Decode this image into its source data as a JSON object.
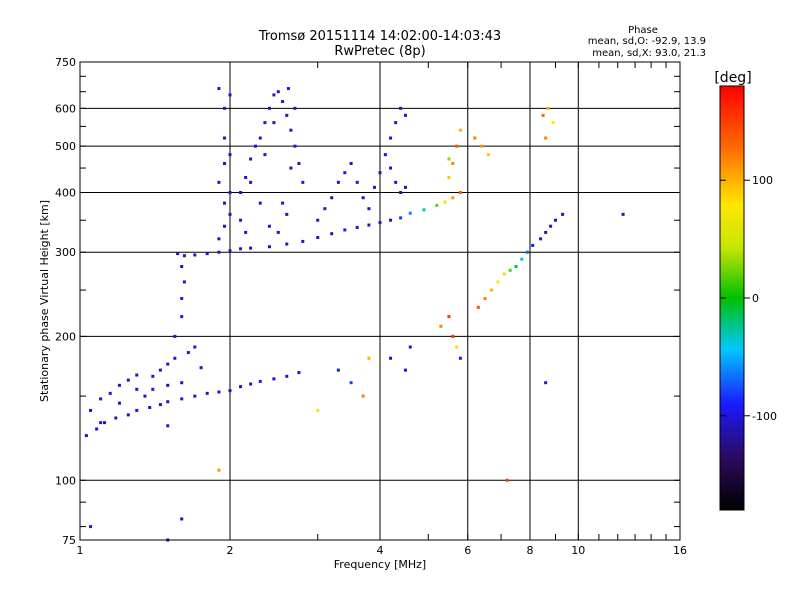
{
  "chart_data": {
    "type": "scatter",
    "title": "Tromsø 20151114 14:02:00-14:03:43",
    "subtitle": "RwPretec (8p)",
    "xlabel": "Frequency [MHz]",
    "ylabel": "Stationary phase Virtual Height [km]",
    "x_scale": "log",
    "y_scale": "log",
    "xlim": [
      1,
      16
    ],
    "ylim": [
      75,
      750
    ],
    "x_ticks": [
      1,
      2,
      4,
      6,
      8,
      10,
      16
    ],
    "y_ticks": [
      75,
      100,
      200,
      300,
      400,
      500,
      600,
      750
    ],
    "grid": true,
    "phase_box": {
      "title": "Phase",
      "line_o": "mean, sd,O: -92.9, 13.9",
      "line_x": "mean, sd,X:  93.0, 21.3"
    },
    "colorbar": {
      "label": "[deg]",
      "range": [
        -180,
        180
      ],
      "ticks": [
        100,
        0,
        -100
      ]
    },
    "series": [
      {
        "points": [
          [
            1.03,
            124,
            -110
          ],
          [
            1.08,
            128,
            -105
          ],
          [
            1.12,
            132,
            -112
          ],
          [
            1.18,
            135,
            -108
          ],
          [
            1.25,
            137,
            -115
          ],
          [
            1.3,
            140,
            -100
          ],
          [
            1.38,
            142,
            -110
          ],
          [
            1.45,
            144,
            -105
          ],
          [
            1.5,
            146,
            -112
          ],
          [
            1.6,
            148,
            -98
          ],
          [
            1.7,
            150,
            -108
          ],
          [
            1.8,
            152,
            -110
          ],
          [
            1.9,
            153,
            -104
          ],
          [
            2.0,
            154,
            -112
          ],
          [
            2.1,
            157,
            -110
          ],
          [
            2.2,
            159,
            -105
          ],
          [
            2.3,
            161,
            -95
          ],
          [
            2.45,
            163,
            -108
          ],
          [
            2.6,
            165,
            -100
          ],
          [
            2.75,
            168,
            -110
          ],
          [
            1.05,
            140,
            -110
          ],
          [
            1.1,
            148,
            -105
          ],
          [
            1.15,
            152,
            -100
          ],
          [
            1.2,
            158,
            -110
          ],
          [
            1.25,
            162,
            -108
          ],
          [
            1.3,
            166,
            -112
          ],
          [
            1.35,
            150,
            -106
          ],
          [
            1.4,
            155,
            -104
          ],
          [
            1.45,
            170,
            -110
          ],
          [
            1.5,
            175,
            -108
          ],
          [
            1.55,
            180,
            -102
          ],
          [
            1.6,
            160,
            -110
          ],
          [
            1.65,
            185,
            -106
          ],
          [
            1.7,
            190,
            -100
          ],
          [
            1.75,
            172,
            -108
          ],
          [
            1.1,
            132,
            -100
          ],
          [
            1.2,
            145,
            -112
          ],
          [
            1.3,
            155,
            -104
          ],
          [
            1.4,
            165,
            -100
          ],
          [
            1.5,
            158,
            -108
          ],
          [
            1.55,
            200,
            -110
          ],
          [
            1.6,
            220,
            -104
          ],
          [
            1.6,
            240,
            -100
          ],
          [
            1.62,
            260,
            -108
          ],
          [
            1.6,
            280,
            -112
          ],
          [
            1.62,
            295,
            -106
          ],
          [
            1.57,
            298,
            -110
          ],
          [
            1.7,
            296,
            -102
          ],
          [
            1.8,
            298,
            -108
          ],
          [
            1.9,
            300,
            -105
          ],
          [
            2.0,
            302,
            -110
          ],
          [
            2.1,
            305,
            -104
          ],
          [
            2.2,
            306,
            -108
          ],
          [
            2.4,
            308,
            -110
          ],
          [
            2.6,
            312,
            -100
          ],
          [
            2.8,
            316,
            -104
          ],
          [
            3.0,
            322,
            -108
          ],
          [
            3.2,
            328,
            -110
          ],
          [
            3.4,
            334,
            -100
          ],
          [
            3.6,
            338,
            -104
          ],
          [
            3.8,
            342,
            -108
          ],
          [
            4.0,
            346,
            -110
          ],
          [
            4.2,
            350,
            -100
          ],
          [
            4.4,
            354,
            -80
          ],
          [
            4.6,
            362,
            -60
          ],
          [
            4.9,
            368,
            -30
          ],
          [
            5.2,
            376,
            20
          ],
          [
            5.4,
            382,
            60
          ],
          [
            5.6,
            390,
            110
          ],
          [
            5.8,
            400,
            140
          ]
        ]
      },
      {
        "points": [
          [
            1.9,
            320,
            -110
          ],
          [
            1.95,
            340,
            -108
          ],
          [
            2.0,
            360,
            -104
          ],
          [
            1.95,
            380,
            -110
          ],
          [
            2.0,
            400,
            -100
          ],
          [
            1.9,
            420,
            -108
          ],
          [
            1.95,
            460,
            -112
          ],
          [
            2.0,
            480,
            -106
          ],
          [
            1.95,
            520,
            -110
          ],
          [
            1.95,
            600,
            -104
          ],
          [
            2.0,
            640,
            -108
          ],
          [
            1.9,
            660,
            -110
          ],
          [
            2.1,
            400,
            -108
          ],
          [
            2.15,
            430,
            -110
          ],
          [
            2.2,
            470,
            -105
          ],
          [
            2.25,
            500,
            -100
          ],
          [
            2.3,
            520,
            -110
          ],
          [
            2.35,
            560,
            -106
          ],
          [
            2.4,
            600,
            -108
          ],
          [
            2.45,
            640,
            -104
          ],
          [
            2.5,
            650,
            -110
          ],
          [
            2.55,
            620,
            -100
          ],
          [
            2.6,
            580,
            -108
          ],
          [
            2.65,
            540,
            -110
          ],
          [
            2.7,
            500,
            -104
          ],
          [
            2.75,
            460,
            -110
          ],
          [
            2.8,
            420,
            -100
          ],
          [
            2.55,
            380,
            -106
          ],
          [
            2.6,
            360,
            -108
          ],
          [
            2.4,
            340,
            -110
          ],
          [
            2.5,
            330,
            -104
          ],
          [
            2.65,
            450,
            -110
          ],
          [
            2.7,
            600,
            -108
          ],
          [
            2.62,
            660,
            -100
          ],
          [
            2.45,
            560,
            -110
          ],
          [
            2.35,
            480,
            -104
          ],
          [
            2.2,
            420,
            -110
          ],
          [
            2.3,
            380,
            -106
          ],
          [
            2.1,
            350,
            -108
          ],
          [
            2.15,
            330,
            -110
          ],
          [
            3.0,
            350,
            -110
          ],
          [
            3.1,
            370,
            -104
          ],
          [
            3.2,
            390,
            -108
          ],
          [
            3.3,
            420,
            -110
          ],
          [
            3.4,
            440,
            -100
          ],
          [
            3.5,
            460,
            -108
          ],
          [
            3.6,
            420,
            -110
          ],
          [
            3.7,
            390,
            -104
          ],
          [
            3.8,
            370,
            -110
          ],
          [
            3.9,
            410,
            -106
          ],
          [
            4.0,
            440,
            -108
          ],
          [
            4.1,
            480,
            -110
          ],
          [
            4.2,
            520,
            -100
          ],
          [
            4.3,
            560,
            -108
          ],
          [
            4.4,
            600,
            -110
          ],
          [
            4.5,
            580,
            -104
          ],
          [
            4.2,
            450,
            -110
          ],
          [
            4.3,
            420,
            -106
          ],
          [
            4.4,
            400,
            -108
          ],
          [
            4.5,
            410,
            -110
          ],
          [
            5.5,
            430,
            90
          ],
          [
            5.6,
            460,
            120
          ],
          [
            5.7,
            500,
            140
          ],
          [
            5.8,
            540,
            100
          ],
          [
            5.5,
            470,
            30
          ],
          [
            6.2,
            520,
            120
          ],
          [
            6.4,
            500,
            110
          ],
          [
            6.6,
            480,
            90
          ]
        ]
      },
      {
        "points": [
          [
            5.3,
            210,
            120
          ],
          [
            5.5,
            220,
            150
          ],
          [
            5.6,
            200,
            160
          ],
          [
            5.7,
            190,
            60
          ],
          [
            5.8,
            180,
            -90
          ],
          [
            6.3,
            230,
            140
          ],
          [
            6.5,
            240,
            120
          ],
          [
            6.7,
            250,
            100
          ],
          [
            6.9,
            260,
            80
          ],
          [
            7.1,
            270,
            60
          ],
          [
            7.3,
            275,
            20
          ],
          [
            7.5,
            280,
            -10
          ],
          [
            7.7,
            290,
            -40
          ],
          [
            7.9,
            300,
            -70
          ],
          [
            8.1,
            310,
            -90
          ],
          [
            8.4,
            320,
            -100
          ],
          [
            8.6,
            330,
            -110
          ],
          [
            8.8,
            340,
            -104
          ],
          [
            9.0,
            350,
            -108
          ],
          [
            9.3,
            360,
            -110
          ],
          [
            8.5,
            580,
            130
          ],
          [
            8.7,
            600,
            100
          ],
          [
            8.9,
            560,
            80
          ],
          [
            8.6,
            520,
            120
          ],
          [
            8.6,
            160,
            -100
          ],
          [
            12.3,
            360,
            -110
          ],
          [
            3.3,
            170,
            -100
          ],
          [
            3.5,
            160,
            -80
          ],
          [
            3.7,
            150,
            120
          ],
          [
            3.0,
            140,
            80
          ],
          [
            4.2,
            180,
            -110
          ],
          [
            4.5,
            170,
            -100
          ],
          [
            1.5,
            130,
            -110
          ],
          [
            1.9,
            105,
            110
          ],
          [
            1.5,
            75,
            -110
          ],
          [
            1.05,
            80,
            -100
          ],
          [
            1.6,
            83,
            -110
          ],
          [
            7.2,
            100,
            150
          ],
          [
            3.8,
            180,
            100
          ],
          [
            4.6,
            190,
            -100
          ]
        ]
      }
    ]
  }
}
